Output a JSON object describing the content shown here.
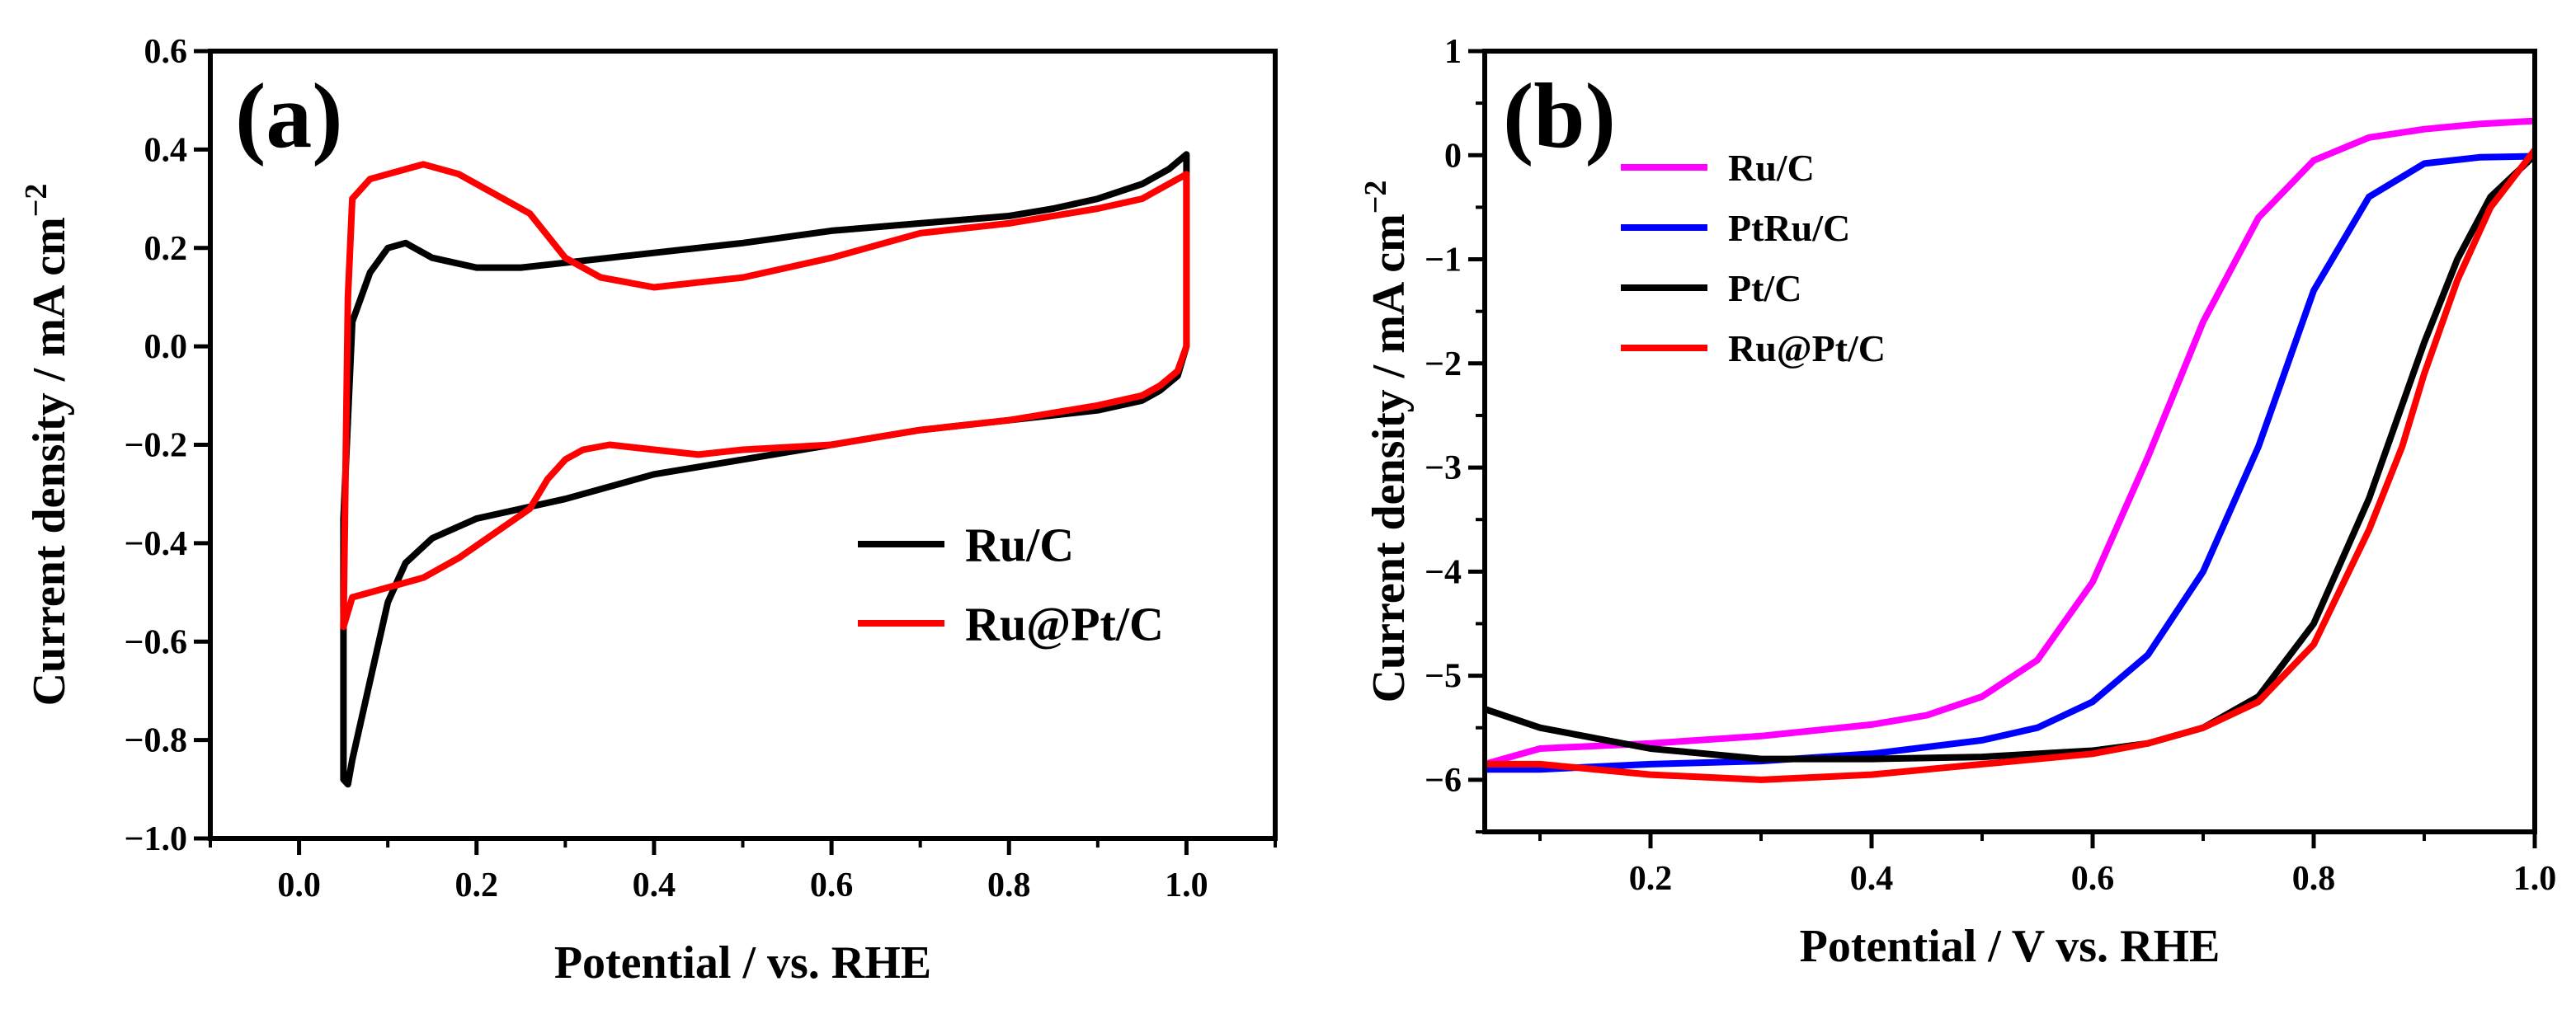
{
  "chart_data": [
    {
      "type": "line",
      "panel_label": "(a)",
      "xlabel": "Potential / vs. RHE",
      "ylabel": "Current density / mA cm",
      "ylabel_sup": "−2",
      "xlim": [
        -0.1,
        1.1
      ],
      "ylim": [
        -1.0,
        0.6
      ],
      "xticks": [
        0.0,
        0.2,
        0.4,
        0.6,
        0.8,
        1.0
      ],
      "xtick_labels": [
        "0.0",
        "0.2",
        "0.4",
        "0.6",
        "0.8",
        "1.0"
      ],
      "yticks": [
        -1.0,
        -0.8,
        -0.6,
        -0.4,
        -0.2,
        0.0,
        0.2,
        0.4,
        0.6
      ],
      "ytick_labels": [
        "−1.0",
        "−0.8",
        "−0.6",
        "−0.4",
        "−0.2",
        "0.0",
        "0.2",
        "0.4",
        "0.6"
      ],
      "legend_position": "lower-right",
      "series": [
        {
          "name": "Ru/C",
          "color": "#000000",
          "x": [
            0.05,
            0.06,
            0.08,
            0.1,
            0.12,
            0.15,
            0.2,
            0.25,
            0.3,
            0.4,
            0.5,
            0.6,
            0.7,
            0.8,
            0.85,
            0.9,
            0.95,
            0.98,
            1.0,
            1.0,
            1.0,
            0.99,
            0.97,
            0.95,
            0.9,
            0.8,
            0.7,
            0.6,
            0.5,
            0.4,
            0.3,
            0.25,
            0.2,
            0.15,
            0.12,
            0.1,
            0.08,
            0.06,
            0.055,
            0.05,
            0.05,
            0.05
          ],
          "y": [
            -0.35,
            0.05,
            0.15,
            0.2,
            0.21,
            0.18,
            0.16,
            0.16,
            0.17,
            0.19,
            0.21,
            0.235,
            0.25,
            0.265,
            0.28,
            0.3,
            0.33,
            0.36,
            0.39,
            0.2,
            0.0,
            -0.06,
            -0.09,
            -0.11,
            -0.13,
            -0.15,
            -0.17,
            -0.2,
            -0.23,
            -0.26,
            -0.31,
            -0.33,
            -0.35,
            -0.39,
            -0.44,
            -0.52,
            -0.68,
            -0.84,
            -0.89,
            -0.88,
            -0.7,
            -0.35
          ]
        },
        {
          "name": "Ru@Pt/C",
          "color": "#ff0000",
          "x": [
            0.05,
            0.055,
            0.06,
            0.08,
            0.1,
            0.14,
            0.18,
            0.22,
            0.26,
            0.3,
            0.34,
            0.4,
            0.5,
            0.6,
            0.7,
            0.8,
            0.9,
            0.95,
            1.0,
            1.0,
            1.0,
            0.99,
            0.97,
            0.95,
            0.9,
            0.8,
            0.7,
            0.6,
            0.5,
            0.45,
            0.4,
            0.35,
            0.32,
            0.3,
            0.28,
            0.26,
            0.22,
            0.18,
            0.14,
            0.1,
            0.08,
            0.06,
            0.05,
            0.05
          ],
          "y": [
            -0.57,
            0.1,
            0.3,
            0.34,
            0.35,
            0.37,
            0.35,
            0.31,
            0.27,
            0.18,
            0.14,
            0.12,
            0.14,
            0.18,
            0.23,
            0.25,
            0.28,
            0.3,
            0.35,
            0.15,
            0.0,
            -0.05,
            -0.08,
            -0.1,
            -0.12,
            -0.15,
            -0.17,
            -0.2,
            -0.21,
            -0.22,
            -0.21,
            -0.2,
            -0.21,
            -0.23,
            -0.27,
            -0.33,
            -0.38,
            -0.43,
            -0.47,
            -0.49,
            -0.5,
            -0.51,
            -0.57,
            -0.57
          ]
        }
      ]
    },
    {
      "type": "line",
      "panel_label": "(b)",
      "xlabel": "Potential / V vs. RHE",
      "ylabel": "Current density / mA cm",
      "ylabel_sup": "−2",
      "xlim": [
        0.05,
        1.0
      ],
      "ylim": [
        -6.5,
        1.0
      ],
      "xticks": [
        0.2,
        0.4,
        0.6,
        0.8,
        1.0
      ],
      "xtick_labels": [
        "0.2",
        "0.4",
        "0.6",
        "0.8",
        "1.0"
      ],
      "yticks": [
        -6,
        -5,
        -4,
        -3,
        -2,
        -1,
        0,
        1
      ],
      "ytick_labels": [
        "−6",
        "−5",
        "−4",
        "−3",
        "−2",
        "−1",
        "0",
        "1"
      ],
      "legend_position": "top-left",
      "series": [
        {
          "name": "Ru/C",
          "color": "#ff00ff",
          "x": [
            0.05,
            0.1,
            0.2,
            0.3,
            0.4,
            0.45,
            0.5,
            0.55,
            0.6,
            0.65,
            0.7,
            0.75,
            0.8,
            0.85,
            0.9,
            0.95,
            1.0
          ],
          "y": [
            -5.85,
            -5.7,
            -5.65,
            -5.58,
            -5.47,
            -5.38,
            -5.2,
            -4.85,
            -4.1,
            -2.9,
            -1.6,
            -0.6,
            -0.05,
            0.17,
            0.25,
            0.3,
            0.33
          ]
        },
        {
          "name": "PtRu/C",
          "color": "#0000ff",
          "x": [
            0.05,
            0.1,
            0.2,
            0.3,
            0.4,
            0.5,
            0.55,
            0.6,
            0.65,
            0.7,
            0.75,
            0.8,
            0.85,
            0.9,
            0.95,
            1.0
          ],
          "y": [
            -5.9,
            -5.9,
            -5.85,
            -5.82,
            -5.75,
            -5.62,
            -5.5,
            -5.25,
            -4.8,
            -4.0,
            -2.8,
            -1.3,
            -0.4,
            -0.08,
            -0.02,
            -0.01
          ]
        },
        {
          "name": "Pt/C",
          "color": "#000000",
          "x": [
            0.05,
            0.1,
            0.15,
            0.2,
            0.3,
            0.4,
            0.5,
            0.6,
            0.65,
            0.7,
            0.75,
            0.8,
            0.85,
            0.88,
            0.9,
            0.93,
            0.96,
            1.0
          ],
          "y": [
            -5.32,
            -5.5,
            -5.6,
            -5.7,
            -5.8,
            -5.8,
            -5.78,
            -5.72,
            -5.65,
            -5.5,
            -5.2,
            -4.5,
            -3.3,
            -2.4,
            -1.8,
            -1.0,
            -0.4,
            0.0
          ]
        },
        {
          "name": "Ru@Pt/C",
          "color": "#ff0000",
          "x": [
            0.05,
            0.1,
            0.2,
            0.3,
            0.4,
            0.5,
            0.6,
            0.65,
            0.7,
            0.75,
            0.8,
            0.85,
            0.88,
            0.9,
            0.93,
            0.96,
            1.0
          ],
          "y": [
            -5.85,
            -5.85,
            -5.95,
            -6.0,
            -5.95,
            -5.85,
            -5.75,
            -5.65,
            -5.5,
            -5.25,
            -4.7,
            -3.6,
            -2.8,
            -2.1,
            -1.2,
            -0.5,
            0.05
          ]
        }
      ]
    }
  ]
}
